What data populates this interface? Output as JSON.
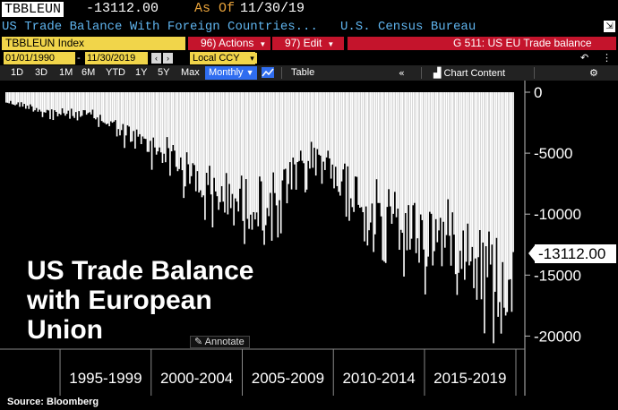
{
  "header": {
    "ticker": "TBBLEUN",
    "value": "-13112.00",
    "as_of_label": "As Of",
    "as_of_date": "11/30/19",
    "description": "US Trade Balance With Foreign Countries...",
    "source": "U.S. Census Bureau"
  },
  "toolbar": {
    "security": "TBBLEUN Index",
    "actions_label": "96) Actions",
    "edit_label": "97) Edit",
    "chart_title": "G 511: US EU Trade balance"
  },
  "range": {
    "start": "01/01/1990",
    "end": "11/30/2019",
    "currency": "Local CCY"
  },
  "periods": [
    "1D",
    "3D",
    "1M",
    "6M",
    "YTD",
    "1Y",
    "5Y",
    "Max"
  ],
  "frequency": "Monthly",
  "table_label": "Table",
  "chart_content_label": "Chart Content",
  "annotate_label": "Annotate",
  "overlay_title": [
    "US Trade Balance",
    "with European",
    "Union"
  ],
  "source_label": "Source: Bloomberg",
  "colors": {
    "accent_blue": "#5fb4ee",
    "field_yellow": "#f1d54a",
    "button_red": "#c4142c",
    "asof_orange": "#e7a23a"
  },
  "chart_data": {
    "type": "bar",
    "title": "US Trade Balance with European Union",
    "series_name": "TBBLEUN Index",
    "frequency": "Monthly",
    "ylim": [
      -21000,
      1000
    ],
    "yticks": [
      0,
      -5000,
      -10000,
      -15000,
      -20000
    ],
    "ytick_labels": [
      "0",
      "-5000",
      "-10000",
      "-15000",
      "-20000"
    ],
    "year_groups": [
      "1995-1999",
      "2000-2004",
      "2005-2009",
      "2010-2014",
      "2015-2019"
    ],
    "last_value": -13112.0,
    "last_value_label": "-13112.00",
    "yearly_typical": [
      {
        "year": 1992,
        "value": -800
      },
      {
        "year": 1993,
        "value": -1100
      },
      {
        "year": 1994,
        "value": -1500
      },
      {
        "year": 1995,
        "value": -1800
      },
      {
        "year": 1996,
        "value": -1900
      },
      {
        "year": 1997,
        "value": -2000
      },
      {
        "year": 1998,
        "value": -2900
      },
      {
        "year": 1999,
        "value": -3800
      },
      {
        "year": 2000,
        "value": -4700
      },
      {
        "year": 2001,
        "value": -5000
      },
      {
        "year": 2002,
        "value": -6800
      },
      {
        "year": 2003,
        "value": -7800
      },
      {
        "year": 2004,
        "value": -8900
      },
      {
        "year": 2005,
        "value": -9200
      },
      {
        "year": 2006,
        "value": -9400
      },
      {
        "year": 2007,
        "value": -8800
      },
      {
        "year": 2008,
        "value": -7000
      },
      {
        "year": 2009,
        "value": -5000
      },
      {
        "year": 2010,
        "value": -6500
      },
      {
        "year": 2011,
        "value": -8000
      },
      {
        "year": 2012,
        "value": -9500
      },
      {
        "year": 2013,
        "value": -10500
      },
      {
        "year": 2014,
        "value": -11300
      },
      {
        "year": 2015,
        "value": -12300
      },
      {
        "year": 2016,
        "value": -12000
      },
      {
        "year": 2017,
        "value": -12400
      },
      {
        "year": 2018,
        "value": -14300
      },
      {
        "year": 2019,
        "value": -15500
      }
    ],
    "notable_points": [
      {
        "date": "2019-03",
        "value": -19800
      },
      {
        "date": "2019-11",
        "value": -13112
      }
    ]
  }
}
